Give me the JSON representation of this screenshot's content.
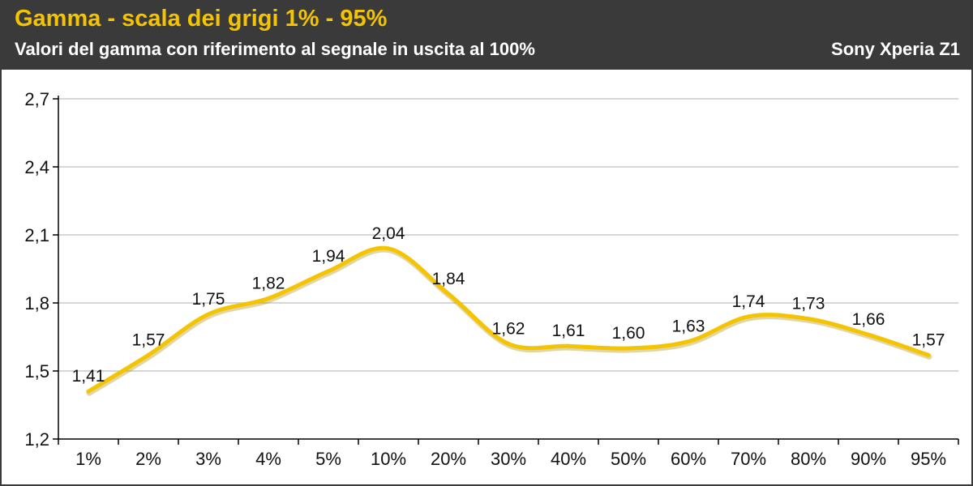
{
  "header": {
    "title": "Gamma - scala dei grigi 1% - 95%",
    "subtitle": "Valori del gamma con riferimento al segnale in uscita al 100%",
    "device": "Sony Xperia Z1"
  },
  "colors": {
    "header_bg": "#3a3a3a",
    "title": "#f5c400",
    "line": "#f5c400",
    "grid": "#c8c8c8"
  },
  "chart_data": {
    "type": "line",
    "title": "Gamma - scala dei grigi 1% - 95%",
    "subtitle": "Valori del gamma con riferimento al segnale in uscita al 100%",
    "categories": [
      "1%",
      "2%",
      "3%",
      "4%",
      "5%",
      "10%",
      "20%",
      "30%",
      "40%",
      "50%",
      "60%",
      "70%",
      "80%",
      "90%",
      "95%"
    ],
    "series": [
      {
        "values": [
          1.41,
          1.57,
          1.75,
          1.82,
          1.94,
          2.04,
          1.84,
          1.62,
          1.61,
          1.6,
          1.63,
          1.74,
          1.73,
          1.66,
          1.57
        ],
        "labels": [
          "1,41",
          "1,57",
          "1,75",
          "1,82",
          "1,94",
          "2,04",
          "1,84",
          "1,62",
          "1,61",
          "1,60",
          "1,63",
          "1,74",
          "1,73",
          "1,66",
          "1,57"
        ]
      }
    ],
    "ylim": [
      1.2,
      2.7
    ],
    "yticks": [
      1.2,
      1.5,
      1.8,
      2.1,
      2.4,
      2.7
    ],
    "ytick_labels": [
      "1,2",
      "1,5",
      "1,8",
      "2,1",
      "2,4",
      "2,7"
    ],
    "grid": true,
    "legend": "none",
    "smooth": true
  }
}
